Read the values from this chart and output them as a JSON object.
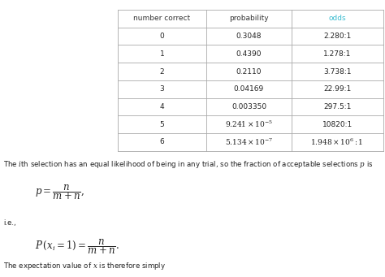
{
  "table_headers": [
    "number correct",
    "probability",
    "odds"
  ],
  "table_data": [
    [
      "0",
      "0.3048",
      "2.280:1"
    ],
    [
      "1",
      "0.4390",
      "1.278:1"
    ],
    [
      "2",
      "0.2110",
      "3.738:1"
    ],
    [
      "3",
      "0.04169",
      "22.99:1"
    ],
    [
      "4",
      "0.003350",
      "297.5:1"
    ],
    [
      "5",
      "$9.241 \\times 10^{-5}$",
      "10820:1"
    ],
    [
      "6",
      "$5.134 \\times 10^{-7}$",
      "$1.948 \\times 10^{6} : 1$"
    ]
  ],
  "header_color_odds": "#3bbcd0",
  "header_color_default": "#333333",
  "text1": "The $i$th selection has an equal likelihood of being in any trial, so the fraction of acceptable selections $p$ is",
  "formula1": "$p = \\dfrac{n}{m+n},$",
  "text2": "i.e.,",
  "formula2": "$P\\,(x_i = 1) = \\dfrac{n}{m+n}.$",
  "text3": "The expectation value of $x$ is therefore simply",
  "figsize": [
    4.74,
    3.41
  ],
  "dpi": 100
}
